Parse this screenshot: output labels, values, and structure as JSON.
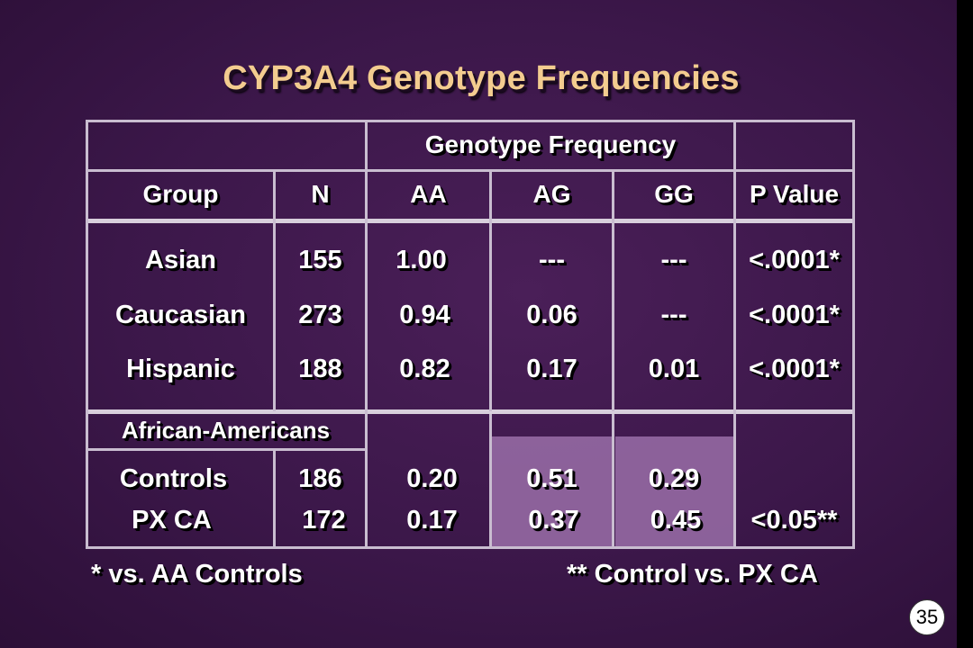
{
  "title": "CYP3A4 Genotype Frequencies",
  "table": {
    "super_header": "Genotype Frequency",
    "headers": {
      "group": "Group",
      "n": "N",
      "aa": "AA",
      "ag": "AG",
      "gg": "GG",
      "p": "P Value"
    },
    "rows": [
      {
        "group": "Asian",
        "n": "155",
        "aa": "1.00",
        "ag": "---",
        "gg": "---",
        "p": "<.0001*"
      },
      {
        "group": "Caucasian",
        "n": "273",
        "aa": "0.94",
        "ag": "0.06",
        "gg": "---",
        "p": "<.0001*"
      },
      {
        "group": "Hispanic",
        "n": "188",
        "aa": "0.82",
        "ag": "0.17",
        "gg": "0.01",
        "p": "<.0001*"
      }
    ],
    "section_label": "African-Americans",
    "section_rows": [
      {
        "group": "Controls",
        "n": "186",
        "aa": "0.20",
        "ag": "0.51",
        "gg": "0.29",
        "p": ""
      },
      {
        "group": "PX CA",
        "n": "172",
        "aa": "0.17",
        "ag": "0.37",
        "gg": "0.45",
        "p": "<0.05**"
      }
    ]
  },
  "footnotes": {
    "left": "* vs. AA Controls",
    "right": "** Control vs. PX CA"
  },
  "slide_number": "35",
  "colors": {
    "background": "#3b1749",
    "title": "#f3cc8f",
    "highlight": "#9a6fa8",
    "grid": "#c9bdd0"
  }
}
